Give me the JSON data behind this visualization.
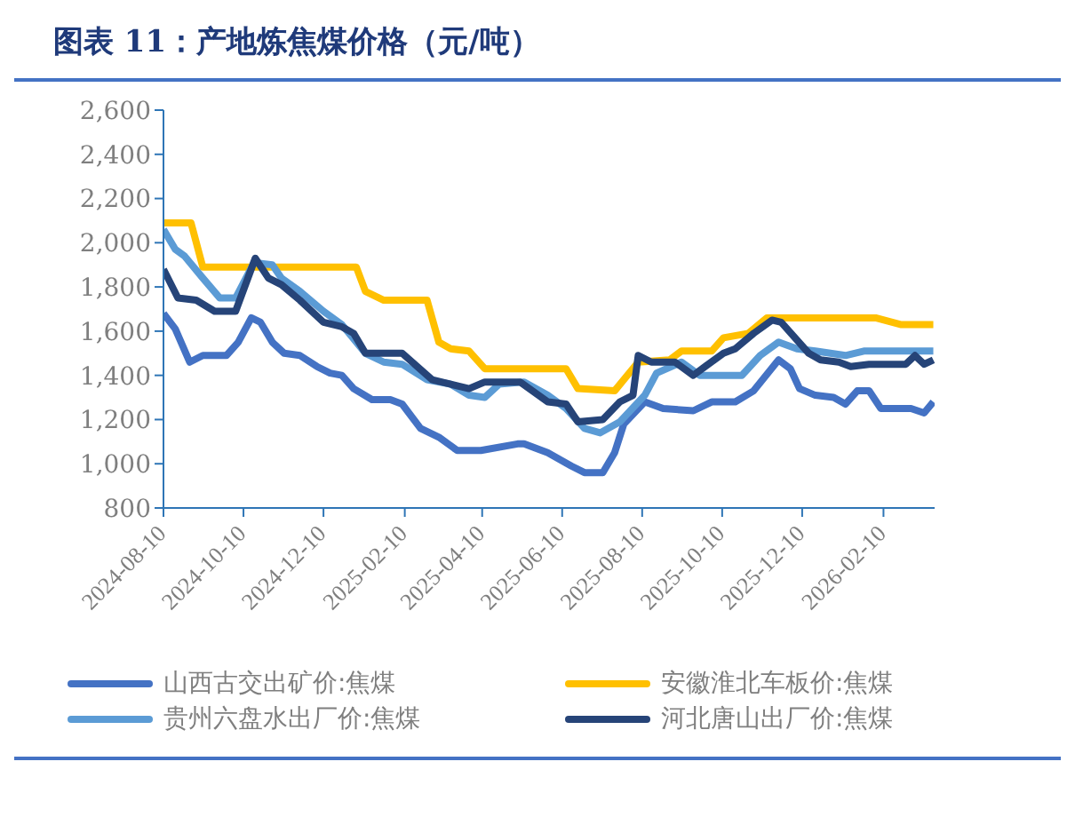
{
  "chart_data": {
    "type": "line",
    "title": "图表 11：产地炼焦煤价格（元/吨）",
    "xlim": [
      "2024-08-10",
      "2026-03-21"
    ],
    "xticks": [
      "2024-08-10",
      "2024-10-10",
      "2024-12-10",
      "2025-02-10",
      "2025-04-10",
      "2025-06-10",
      "2025-08-10",
      "2025-10-10",
      "2025-12-10",
      "2026-02-10"
    ],
    "ylim": [
      800,
      2600
    ],
    "yticks": [
      {
        "value": 800,
        "label": "800"
      },
      {
        "value": 1000,
        "label": "1,000"
      },
      {
        "value": 1200,
        "label": "1,200"
      },
      {
        "value": 1400,
        "label": "1,400"
      },
      {
        "value": 1600,
        "label": "1,600"
      },
      {
        "value": 1800,
        "label": "1,800"
      },
      {
        "value": 2000,
        "label": "2,000"
      },
      {
        "value": 2200,
        "label": "2,200"
      },
      {
        "value": 2400,
        "label": "2,400"
      },
      {
        "value": 2600,
        "label": "2,600"
      }
    ],
    "legend": "bottom",
    "marker": "none",
    "line_style": "solid",
    "series": [
      {
        "name": "山西古交出矿价:焦煤",
        "color": "#4472c4",
        "x": [
          "2024-08-10",
          "2024-08-19",
          "2024-08-30",
          "2024-09-09",
          "2024-09-27",
          "2024-10-06",
          "2024-10-16",
          "2024-10-23",
          "2024-11-01",
          "2024-11-10",
          "2024-11-22",
          "2024-12-05",
          "2024-12-15",
          "2024-12-24",
          "2025-01-02",
          "2025-01-16",
          "2025-01-30",
          "2025-02-08",
          "2025-02-22",
          "2025-03-08",
          "2025-03-22",
          "2025-04-09",
          "2025-05-07",
          "2025-05-12",
          "2025-05-30",
          "2025-06-17",
          "2025-06-27",
          "2025-07-11",
          "2025-07-20",
          "2025-07-27",
          "2025-08-12",
          "2025-08-26",
          "2025-09-18",
          "2025-10-02",
          "2025-10-20",
          "2025-11-03",
          "2025-11-22",
          "2025-12-01",
          "2025-12-08",
          "2025-12-20",
          "2026-01-03",
          "2026-01-12",
          "2026-01-21",
          "2026-01-30",
          "2026-02-08",
          "2026-03-03",
          "2026-03-13",
          "2026-03-20"
        ],
        "values": [
          1680,
          1610,
          1460,
          1490,
          1490,
          1550,
          1660,
          1640,
          1550,
          1500,
          1490,
          1440,
          1410,
          1400,
          1340,
          1290,
          1290,
          1270,
          1160,
          1120,
          1060,
          1060,
          1090,
          1090,
          1050,
          990,
          960,
          960,
          1050,
          1180,
          1280,
          1250,
          1240,
          1280,
          1280,
          1330,
          1470,
          1430,
          1340,
          1310,
          1300,
          1270,
          1330,
          1330,
          1250,
          1250,
          1230,
          1280
        ]
      },
      {
        "name": "安徽淮北车板价:焦煤",
        "color": "#ffc000",
        "x": [
          "2024-08-10",
          "2024-08-31",
          "2024-09-09",
          "2025-01-04",
          "2025-01-11",
          "2025-01-25",
          "2025-02-27",
          "2025-03-08",
          "2025-03-17",
          "2025-03-31",
          "2025-04-12",
          "2025-06-13",
          "2025-06-22",
          "2025-07-20",
          "2025-08-07",
          "2025-08-31",
          "2025-09-09",
          "2025-10-02",
          "2025-10-11",
          "2025-10-30",
          "2025-11-13",
          "2026-02-04",
          "2026-02-23",
          "2026-03-20"
        ],
        "values": [
          2090,
          2090,
          1890,
          1890,
          1780,
          1740,
          1740,
          1550,
          1520,
          1510,
          1430,
          1430,
          1340,
          1330,
          1460,
          1470,
          1510,
          1510,
          1570,
          1590,
          1660,
          1660,
          1630,
          1630
        ]
      },
      {
        "name": "贵州六盘水出厂价:焦煤",
        "color": "#5b9bd5",
        "x": [
          "2024-08-10",
          "2024-08-19",
          "2024-08-26",
          "2024-09-09",
          "2024-09-22",
          "2024-10-04",
          "2024-10-18",
          "2024-11-01",
          "2024-11-08",
          "2024-11-22",
          "2024-12-10",
          "2024-12-24",
          "2025-01-11",
          "2025-01-25",
          "2025-02-08",
          "2025-02-27",
          "2025-03-17",
          "2025-03-31",
          "2025-04-12",
          "2025-04-23",
          "2025-05-12",
          "2025-05-30",
          "2025-06-13",
          "2025-06-27",
          "2025-07-09",
          "2025-07-24",
          "2025-08-12",
          "2025-08-21",
          "2025-09-09",
          "2025-09-23",
          "2025-10-25",
          "2025-11-08",
          "2025-11-22",
          "2025-12-06",
          "2025-12-20",
          "2026-01-12",
          "2026-01-26",
          "2026-03-20"
        ],
        "values": [
          2060,
          1970,
          1940,
          1840,
          1750,
          1750,
          1910,
          1900,
          1840,
          1780,
          1690,
          1630,
          1500,
          1460,
          1450,
          1380,
          1360,
          1310,
          1300,
          1360,
          1370,
          1310,
          1250,
          1160,
          1140,
          1190,
          1310,
          1410,
          1460,
          1400,
          1400,
          1490,
          1550,
          1520,
          1510,
          1490,
          1510,
          1510
        ]
      },
      {
        "name": "河北唐山出厂价:焦煤",
        "color": "#264478",
        "x": [
          "2024-08-10",
          "2024-08-21",
          "2024-09-04",
          "2024-09-18",
          "2024-10-04",
          "2024-10-19",
          "2024-10-29",
          "2024-11-08",
          "2024-11-22",
          "2024-12-10",
          "2024-12-24",
          "2025-01-02",
          "2025-01-11",
          "2025-02-08",
          "2025-03-03",
          "2025-03-17",
          "2025-03-31",
          "2025-04-12",
          "2025-05-09",
          "2025-05-30",
          "2025-06-13",
          "2025-06-22",
          "2025-07-11",
          "2025-07-24",
          "2025-08-03",
          "2025-08-07",
          "2025-08-17",
          "2025-09-04",
          "2025-09-18",
          "2025-09-27",
          "2025-10-11",
          "2025-10-20",
          "2025-11-03",
          "2025-11-17",
          "2025-11-24",
          "2025-12-15",
          "2025-12-24",
          "2026-01-07",
          "2026-01-16",
          "2026-01-30",
          "2026-02-27",
          "2026-03-06",
          "2026-03-13",
          "2026-03-20"
        ],
        "values": [
          1880,
          1750,
          1740,
          1690,
          1690,
          1930,
          1840,
          1810,
          1740,
          1640,
          1620,
          1590,
          1500,
          1500,
          1380,
          1360,
          1340,
          1370,
          1370,
          1280,
          1270,
          1190,
          1200,
          1280,
          1310,
          1490,
          1460,
          1460,
          1400,
          1440,
          1500,
          1520,
          1590,
          1650,
          1640,
          1500,
          1470,
          1460,
          1440,
          1450,
          1450,
          1490,
          1450,
          1470
        ]
      }
    ]
  }
}
